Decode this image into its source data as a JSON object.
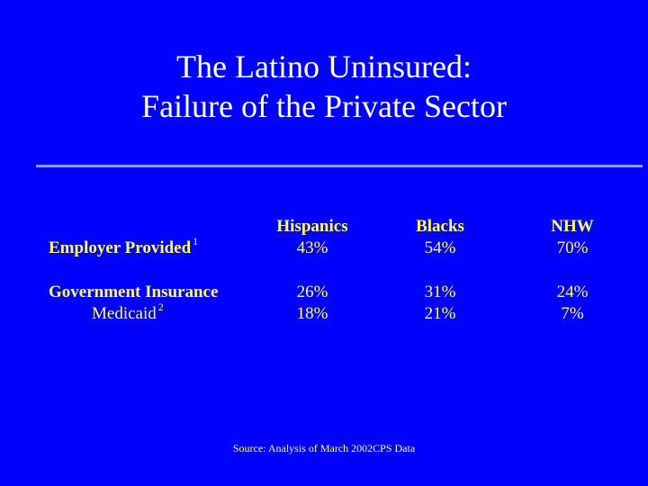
{
  "slide": {
    "title_line1": "The Latino Uninsured:",
    "title_line2": "Failure of the Private Sector"
  },
  "table": {
    "columns": [
      "Hispanics",
      "Blacks",
      "NHW"
    ],
    "rows": [
      {
        "label": "Employer Provided",
        "footnote": "1",
        "values": [
          "43%",
          "54%",
          "70%"
        ]
      },
      {
        "label": "Government Insurance",
        "footnote": "",
        "values": [
          "26%",
          "31%",
          "24%"
        ]
      },
      {
        "label": "Medicaid",
        "footnote": "2",
        "values": [
          "18%",
          "21%",
          "7%"
        ]
      }
    ]
  },
  "source": "Source: Analysis of March 2002CPS Data",
  "colors": {
    "background": "#0000ff",
    "title": "#ffffff",
    "text": "#ffff66"
  }
}
